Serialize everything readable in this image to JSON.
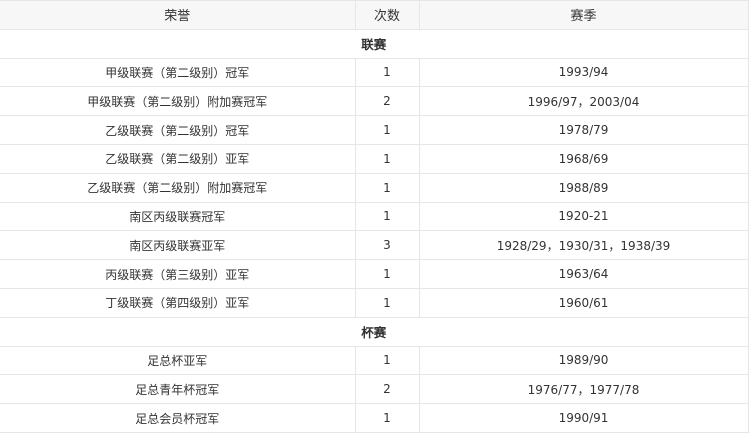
{
  "headers": {
    "honor": "荣誉",
    "count": "次数",
    "season": "赛季"
  },
  "sections": [
    {
      "title": "联赛",
      "rows": [
        {
          "honor": "甲级联赛（第二级别）冠军",
          "count": "1",
          "season": "1993/94"
        },
        {
          "honor": "甲级联赛（第二级别）附加赛冠军",
          "count": "2",
          "season": "1996/97，2003/04"
        },
        {
          "honor": "乙级联赛（第二级别）冠军",
          "count": "1",
          "season": "1978/79"
        },
        {
          "honor": "乙级联赛（第二级别）亚军",
          "count": "1",
          "season": "1968/69"
        },
        {
          "honor": "乙级联赛（第二级别）附加赛冠军",
          "count": "1",
          "season": "1988/89"
        },
        {
          "honor": "南区丙级联赛冠军",
          "count": "1",
          "season": "1920-21"
        },
        {
          "honor": "南区丙级联赛亚军",
          "count": "3",
          "season": "1928/29，1930/31，1938/39"
        },
        {
          "honor": "丙级联赛（第三级别）亚军",
          "count": "1",
          "season": "1963/64"
        },
        {
          "honor": "丁级联赛（第四级别）亚军",
          "count": "1",
          "season": "1960/61"
        }
      ]
    },
    {
      "title": "杯赛",
      "rows": [
        {
          "honor": "足总杯亚军",
          "count": "1",
          "season": "1989/90"
        },
        {
          "honor": "足总青年杯冠军",
          "count": "2",
          "season": "1976/77，1977/78"
        },
        {
          "honor": "足总会员杯冠军",
          "count": "1",
          "season": "1990/91"
        }
      ]
    }
  ]
}
